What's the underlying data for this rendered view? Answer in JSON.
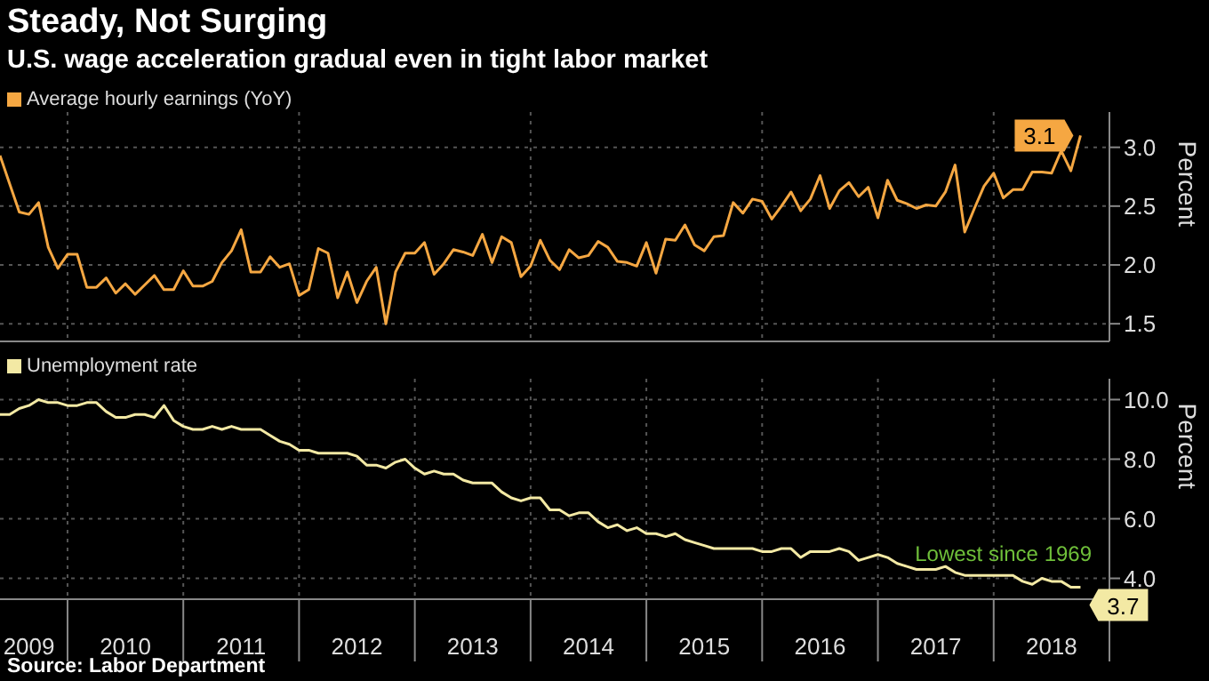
{
  "chart_data": [
    {
      "type": "line",
      "title": "Steady, Not Surging",
      "subtitle": "U.S. wage acceleration gradual even in tight labor market",
      "ylabel": "Percent",
      "legend": "top left",
      "grid": true,
      "tick_labels": "y",
      "marker": "none",
      "line_style": "solid",
      "xlim": [
        "2009-06",
        "2019-01"
      ],
      "xticks": [
        {
          "value": "2010-01",
          "label": null
        },
        {
          "value": "2012-01",
          "label": null
        },
        {
          "value": "2014-01",
          "label": null
        },
        {
          "value": "2016-01",
          "label": null
        },
        {
          "value": "2018-01",
          "label": null
        }
      ],
      "ylim": [
        1.35,
        3.3
      ],
      "yticks": [
        {
          "value": 1.5,
          "label": "1.5"
        },
        {
          "value": 2,
          "label": "2.0"
        },
        {
          "value": 2.5,
          "label": "2.5"
        },
        {
          "value": 3,
          "label": "3.0"
        }
      ],
      "x": [
        "2009-06",
        "2009-07",
        "2009-08",
        "2009-09",
        "2009-10",
        "2009-11",
        "2009-12",
        "2010-01",
        "2010-02",
        "2010-03",
        "2010-04",
        "2010-05",
        "2010-06",
        "2010-07",
        "2010-08",
        "2010-09",
        "2010-10",
        "2010-11",
        "2010-12",
        "2011-01",
        "2011-02",
        "2011-03",
        "2011-04",
        "2011-05",
        "2011-06",
        "2011-07",
        "2011-08",
        "2011-09",
        "2011-10",
        "2011-11",
        "2011-12",
        "2012-01",
        "2012-02",
        "2012-03",
        "2012-04",
        "2012-05",
        "2012-06",
        "2012-07",
        "2012-08",
        "2012-09",
        "2012-10",
        "2012-11",
        "2012-12",
        "2013-01",
        "2013-02",
        "2013-03",
        "2013-04",
        "2013-05",
        "2013-06",
        "2013-07",
        "2013-08",
        "2013-09",
        "2013-10",
        "2013-11",
        "2013-12",
        "2014-01",
        "2014-02",
        "2014-03",
        "2014-04",
        "2014-05",
        "2014-06",
        "2014-07",
        "2014-08",
        "2014-09",
        "2014-10",
        "2014-11",
        "2014-12",
        "2015-01",
        "2015-02",
        "2015-03",
        "2015-04",
        "2015-05",
        "2015-06",
        "2015-07",
        "2015-08",
        "2015-09",
        "2015-10",
        "2015-11",
        "2015-12",
        "2016-01",
        "2016-02",
        "2016-03",
        "2016-04",
        "2016-05",
        "2016-06",
        "2016-07",
        "2016-08",
        "2016-09",
        "2016-10",
        "2016-11",
        "2016-12",
        "2017-01",
        "2017-02",
        "2017-03",
        "2017-04",
        "2017-05",
        "2017-06",
        "2017-07",
        "2017-08",
        "2017-09",
        "2017-10",
        "2017-11",
        "2017-12",
        "2018-01",
        "2018-02",
        "2018-03",
        "2018-04",
        "2018-05",
        "2018-06",
        "2018-07",
        "2018-08",
        "2018-09",
        "2018-10"
      ],
      "series": [
        {
          "name": "Average hourly earnings (YoY)",
          "color": "#f5a742",
          "values": [
            2.93,
            2.69,
            2.45,
            2.43,
            2.53,
            2.15,
            1.97,
            2.09,
            2.09,
            1.81,
            1.81,
            1.89,
            1.76,
            1.84,
            1.75,
            1.83,
            1.91,
            1.79,
            1.79,
            1.95,
            1.82,
            1.82,
            1.86,
            2.02,
            2.12,
            2.3,
            1.94,
            1.94,
            2.07,
            1.98,
            2.01,
            1.74,
            1.79,
            2.14,
            2.1,
            1.72,
            1.94,
            1.68,
            1.86,
            1.98,
            1.5,
            1.94,
            2.1,
            2.1,
            2.19,
            1.92,
            2.01,
            2.13,
            2.11,
            2.08,
            2.26,
            2.02,
            2.24,
            2.19,
            1.9,
            1.99,
            2.21,
            2.04,
            1.96,
            2.13,
            2.06,
            2.08,
            2.2,
            2.15,
            2.03,
            2.02,
            1.99,
            2.19,
            1.93,
            2.22,
            2.21,
            2.34,
            2.17,
            2.12,
            2.24,
            2.25,
            2.53,
            2.44,
            2.56,
            2.54,
            2.39,
            2.5,
            2.62,
            2.46,
            2.56,
            2.76,
            2.48,
            2.63,
            2.7,
            2.58,
            2.66,
            2.4,
            2.72,
            2.55,
            2.52,
            2.48,
            2.51,
            2.5,
            2.62,
            2.85,
            2.28,
            2.48,
            2.67,
            2.78,
            2.57,
            2.64,
            2.64,
            2.79,
            2.79,
            2.78,
            2.97,
            2.8,
            3.1
          ],
          "value_labels": [
            null,
            null,
            null,
            null,
            null,
            null,
            null,
            null,
            null,
            null,
            null,
            null,
            null,
            null,
            null,
            null,
            null,
            null,
            null,
            null,
            null,
            null,
            null,
            null,
            null,
            null,
            null,
            null,
            null,
            null,
            null,
            null,
            null,
            null,
            null,
            null,
            null,
            null,
            null,
            null,
            null,
            null,
            null,
            null,
            null,
            null,
            null,
            null,
            null,
            null,
            null,
            null,
            null,
            null,
            null,
            null,
            null,
            null,
            null,
            null,
            null,
            null,
            null,
            null,
            null,
            null,
            null,
            null,
            null,
            null,
            null,
            null,
            null,
            null,
            null,
            null,
            null,
            null,
            null,
            null,
            null,
            null,
            null,
            null,
            null,
            null,
            null,
            null,
            null,
            null,
            null,
            null,
            null,
            null,
            null,
            null,
            null,
            null,
            null,
            null,
            null,
            null,
            null,
            null,
            null,
            null,
            null,
            null,
            null,
            null,
            null,
            null,
            "3.1"
          ]
        }
      ]
    },
    {
      "type": "line",
      "ylabel": "Percent",
      "legend": "top left",
      "grid": true,
      "marker": "none",
      "line_style": "solid",
      "xlim": [
        "2009-06",
        "2019-01"
      ],
      "xticks": [
        {
          "value": "2009-09",
          "label": "2009"
        },
        {
          "value": "2010-01",
          "label": null
        },
        {
          "value": "2010-07",
          "label": "2010"
        },
        {
          "value": "2011-01",
          "label": null
        },
        {
          "value": "2011-07",
          "label": "2011"
        },
        {
          "value": "2012-01",
          "label": null
        },
        {
          "value": "2012-07",
          "label": "2012"
        },
        {
          "value": "2013-01",
          "label": null
        },
        {
          "value": "2013-07",
          "label": "2013"
        },
        {
          "value": "2014-01",
          "label": null
        },
        {
          "value": "2014-07",
          "label": "2014"
        },
        {
          "value": "2015-01",
          "label": null
        },
        {
          "value": "2015-07",
          "label": "2015"
        },
        {
          "value": "2016-01",
          "label": null
        },
        {
          "value": "2016-07",
          "label": "2016"
        },
        {
          "value": "2017-01",
          "label": null
        },
        {
          "value": "2017-07",
          "label": "2017"
        },
        {
          "value": "2018-01",
          "label": null
        },
        {
          "value": "2018-07",
          "label": "2018"
        },
        {
          "value": "2019-01",
          "label": null
        }
      ],
      "ylim": [
        3.3,
        10.7
      ],
      "yticks": [
        {
          "value": 4,
          "label": "4.0"
        },
        {
          "value": 6,
          "label": "6.0"
        },
        {
          "value": 8,
          "label": "8.0"
        },
        {
          "value": 10,
          "label": "10.0"
        }
      ],
      "annotations": [
        {
          "text": "Lowest since 1969",
          "x": "2018-02",
          "y": 4.1
        },
        "Source: Labor Department"
      ],
      "x": [
        "2009-06",
        "2009-07",
        "2009-08",
        "2009-09",
        "2009-10",
        "2009-11",
        "2009-12",
        "2010-01",
        "2010-02",
        "2010-03",
        "2010-04",
        "2010-05",
        "2010-06",
        "2010-07",
        "2010-08",
        "2010-09",
        "2010-10",
        "2010-11",
        "2010-12",
        "2011-01",
        "2011-02",
        "2011-03",
        "2011-04",
        "2011-05",
        "2011-06",
        "2011-07",
        "2011-08",
        "2011-09",
        "2011-10",
        "2011-11",
        "2011-12",
        "2012-01",
        "2012-02",
        "2012-03",
        "2012-04",
        "2012-05",
        "2012-06",
        "2012-07",
        "2012-08",
        "2012-09",
        "2012-10",
        "2012-11",
        "2012-12",
        "2013-01",
        "2013-02",
        "2013-03",
        "2013-04",
        "2013-05",
        "2013-06",
        "2013-07",
        "2013-08",
        "2013-09",
        "2013-10",
        "2013-11",
        "2013-12",
        "2014-01",
        "2014-02",
        "2014-03",
        "2014-04",
        "2014-05",
        "2014-06",
        "2014-07",
        "2014-08",
        "2014-09",
        "2014-10",
        "2014-11",
        "2014-12",
        "2015-01",
        "2015-02",
        "2015-03",
        "2015-04",
        "2015-05",
        "2015-06",
        "2015-07",
        "2015-08",
        "2015-09",
        "2015-10",
        "2015-11",
        "2015-12",
        "2016-01",
        "2016-02",
        "2016-03",
        "2016-04",
        "2016-05",
        "2016-06",
        "2016-07",
        "2016-08",
        "2016-09",
        "2016-10",
        "2016-11",
        "2016-12",
        "2017-01",
        "2017-02",
        "2017-03",
        "2017-04",
        "2017-05",
        "2017-06",
        "2017-07",
        "2017-08",
        "2017-09",
        "2017-10",
        "2017-11",
        "2017-12",
        "2018-01",
        "2018-02",
        "2018-03",
        "2018-04",
        "2018-05",
        "2018-06",
        "2018-07",
        "2018-08",
        "2018-09",
        "2018-10"
      ],
      "series": [
        {
          "name": "Unemployment rate",
          "color": "#f3e9a4",
          "values": [
            9.5,
            9.5,
            9.7,
            9.8,
            10,
            9.9,
            9.9,
            9.8,
            9.8,
            9.9,
            9.9,
            9.6,
            9.4,
            9.4,
            9.5,
            9.5,
            9.4,
            9.8,
            9.3,
            9.1,
            9,
            9,
            9.1,
            9,
            9.1,
            9,
            9,
            9,
            8.8,
            8.6,
            8.5,
            8.3,
            8.3,
            8.2,
            8.2,
            8.2,
            8.2,
            8.1,
            7.8,
            7.8,
            7.7,
            7.9,
            8,
            7.7,
            7.5,
            7.6,
            7.5,
            7.5,
            7.3,
            7.2,
            7.2,
            7.2,
            6.9,
            6.7,
            6.6,
            6.7,
            6.7,
            6.3,
            6.3,
            6.1,
            6.2,
            6.2,
            5.9,
            5.7,
            5.8,
            5.6,
            5.7,
            5.5,
            5.5,
            5.4,
            5.5,
            5.3,
            5.2,
            5.1,
            5,
            5,
            5,
            5,
            5,
            4.9,
            4.9,
            5,
            5,
            4.7,
            4.9,
            4.9,
            4.9,
            5,
            4.9,
            4.6,
            4.7,
            4.8,
            4.7,
            4.5,
            4.4,
            4.3,
            4.3,
            4.3,
            4.4,
            4.2,
            4.1,
            4.1,
            4.1,
            4.1,
            4.1,
            4.1,
            3.9,
            3.8,
            4,
            3.9,
            3.9,
            3.7,
            3.7
          ],
          "value_labels": [
            null,
            null,
            null,
            null,
            null,
            null,
            null,
            null,
            null,
            null,
            null,
            null,
            null,
            null,
            null,
            null,
            null,
            null,
            null,
            null,
            null,
            null,
            null,
            null,
            null,
            null,
            null,
            null,
            null,
            null,
            null,
            null,
            null,
            null,
            null,
            null,
            null,
            null,
            null,
            null,
            null,
            null,
            null,
            null,
            null,
            null,
            null,
            null,
            null,
            null,
            null,
            null,
            null,
            null,
            null,
            null,
            null,
            null,
            null,
            null,
            null,
            null,
            null,
            null,
            null,
            null,
            null,
            null,
            null,
            null,
            null,
            null,
            null,
            null,
            null,
            null,
            null,
            null,
            null,
            null,
            null,
            null,
            null,
            null,
            null,
            null,
            null,
            null,
            null,
            null,
            null,
            null,
            null,
            null,
            null,
            null,
            null,
            null,
            null,
            null,
            null,
            null,
            null,
            null,
            null,
            null,
            null,
            null,
            null,
            null,
            null,
            null,
            "3.7"
          ]
        }
      ]
    }
  ]
}
